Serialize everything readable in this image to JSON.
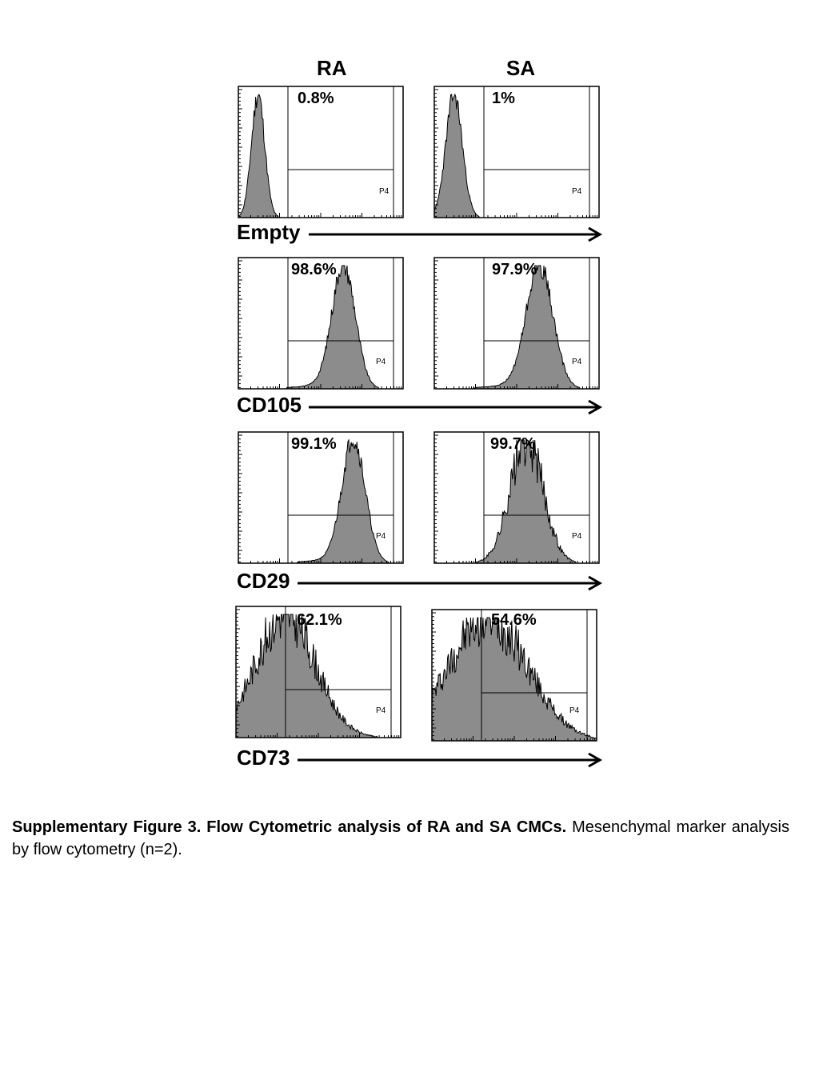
{
  "figure": {
    "columns": [
      "RA",
      "SA"
    ],
    "gate_label": "P4",
    "rows": [
      {
        "marker": "Empty",
        "ra_percent": "0.8%",
        "sa_percent": "1%"
      },
      {
        "marker": "CD105",
        "ra_percent": "98.6%",
        "sa_percent": "97.9%"
      },
      {
        "marker": "CD29",
        "ra_percent": "99.1%",
        "sa_percent": "99.7%"
      },
      {
        "marker": "CD73",
        "ra_percent": "62.1%",
        "sa_percent": "54.6%"
      }
    ]
  },
  "caption": {
    "bold": "Supplementary Figure 3. Flow Cytometric analysis of RA and SA CMCs.",
    "normal": " Mesenchymal marker analysis by flow cytometry (n=2)."
  },
  "colors": {
    "histogram_fill": "#8c8c8c",
    "line": "#000000"
  }
}
